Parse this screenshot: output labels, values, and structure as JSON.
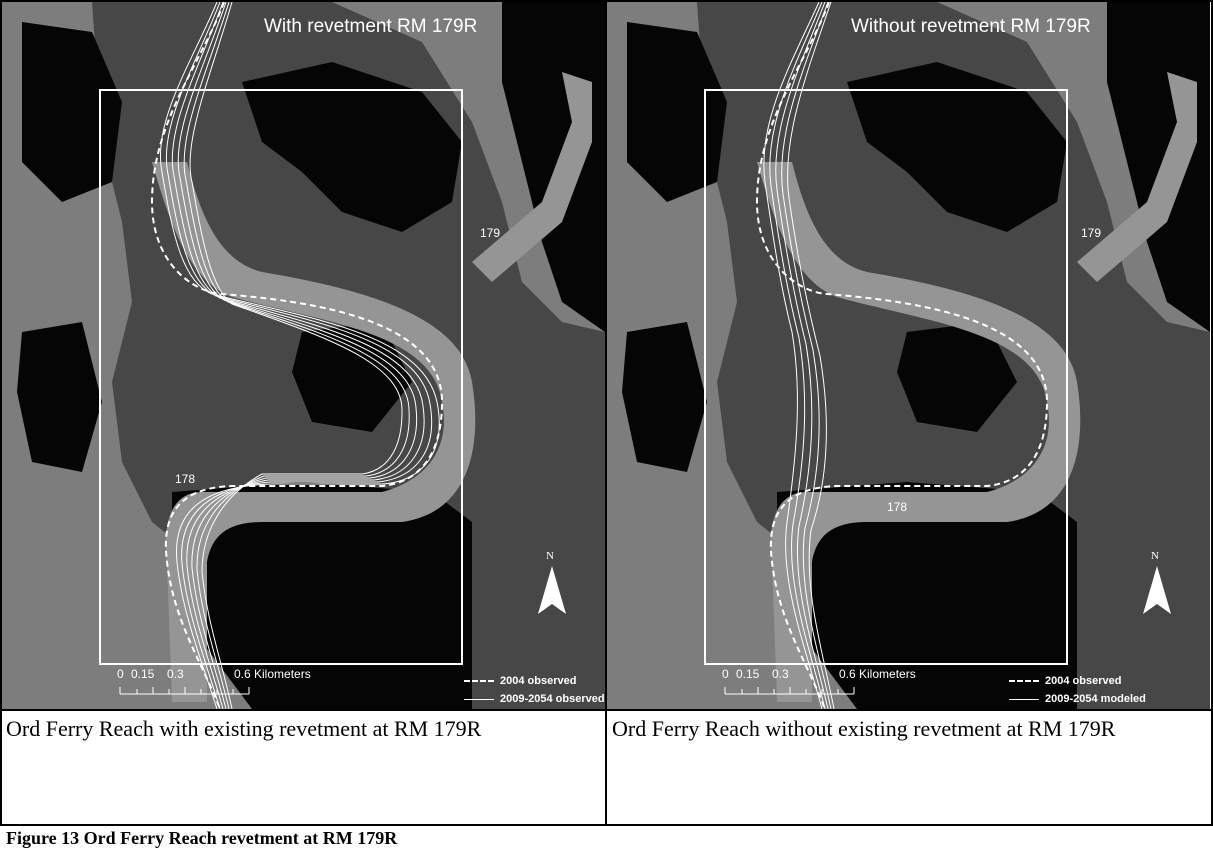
{
  "panels": [
    {
      "title": "With revetment RM 179R",
      "rm_upper": "179",
      "rm_lower": "178",
      "north_letter": "N",
      "scale_ticks": [
        "0",
        "0.15",
        "0.3",
        "0.6 Kilometers"
      ],
      "legend": [
        {
          "label": "2004 observed",
          "style": "dashed"
        },
        {
          "label": "2009-2054 observed",
          "style": "solid"
        }
      ],
      "caption": "Ord Ferry Reach with existing revetment at RM 179R"
    },
    {
      "title": "Without revetment RM 179R",
      "rm_upper": "179",
      "rm_lower": "178",
      "north_letter": "N",
      "scale_ticks": [
        "0",
        "0.15",
        "0.3",
        "0.6 Kilometers"
      ],
      "legend": [
        {
          "label": "2004 observed",
          "style": "dashed"
        },
        {
          "label": "2009-2054 modeled",
          "style": "solid"
        }
      ],
      "caption": "Ord Ferry Reach without existing revetment at RM 179R"
    }
  ],
  "figure_caption": "Figure 13 Ord Ferry Reach revetment at RM 179R",
  "colors": {
    "background_light": "#8a8a8a",
    "background_mid": "#4d4d4d",
    "background_dark": "#070707",
    "channel_light": "#9a9a9a",
    "line_white": "#ffffff"
  }
}
